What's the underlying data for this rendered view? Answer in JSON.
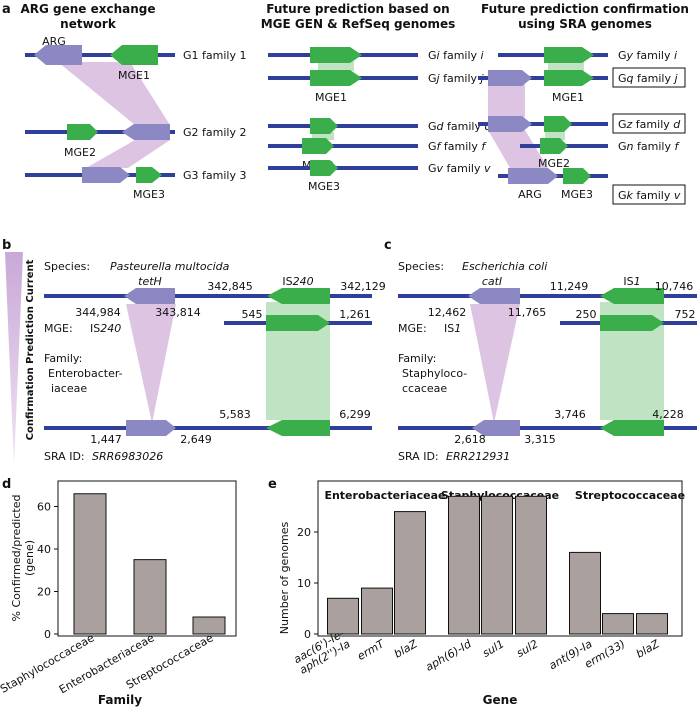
{
  "colors": {
    "backbone": "#2f3f9a",
    "arg": "#8c88c4",
    "mge": "#3aae4a",
    "arg_band": "#dcc4e2",
    "mge_band": "#bfe3c3",
    "bar": "#aaa09e"
  },
  "panel_letters": {
    "a": "a",
    "b": "b",
    "c": "c",
    "d": "d",
    "e": "e"
  },
  "panel_a": {
    "col1": {
      "title1": "ARG gene exchange",
      "title2": "network",
      "arg_label": "ARG",
      "mge1": "MGE1",
      "mge2": "MGE2",
      "mge3": "MGE3",
      "g1": "G1 family 1",
      "g2": "G2 family 2",
      "g3": "G3 family 3"
    },
    "col2": {
      "title1": "Future prediction based on",
      "title2": "MGE GEN & RefSeq genomes",
      "mge1": "MGE1",
      "mge2": "MGE2",
      "mge3": "MGE3",
      "rows": [
        {
          "pre": "G",
          "it": "i",
          "mid": " family ",
          "it2": "i"
        },
        {
          "pre": "G",
          "it": "j",
          "mid": " family ",
          "it2": "j"
        },
        {
          "pre": "G",
          "it": "d",
          "mid": " family ",
          "it2": "d"
        },
        {
          "pre": "G",
          "it": "f",
          "mid": " family ",
          "it2": "f"
        },
        {
          "pre": "G",
          "it": "v",
          "mid": " family ",
          "it2": "v"
        }
      ]
    },
    "col3": {
      "title1": "Future prediction confirmation",
      "title2": "using SRA genomes",
      "mge1": "MGE1",
      "mge2": "MGE2",
      "mge3": "MGE3",
      "arg": "ARG",
      "rows": [
        {
          "pre": "G",
          "it": "y",
          "mid": " family ",
          "it2": "i"
        },
        {
          "pre": "G",
          "it": "q",
          "mid": " family ",
          "it2": "j"
        },
        {
          "pre": "G",
          "it": "z",
          "mid": " family ",
          "it2": "d"
        },
        {
          "pre": "G",
          "it": "n",
          "mid": " family ",
          "it2": "f"
        },
        {
          "pre": "G",
          "it": "k",
          "mid": " family ",
          "it2": "v"
        }
      ]
    }
  },
  "side_label": "Confirmation Prediction Current",
  "panel_b": {
    "species_label": "Species:",
    "species": "Pasteurella multocida",
    "gene": "tetH",
    "is_pre": "IS",
    "is_num": "240",
    "c1": "344,984",
    "c2": "343,814",
    "c3": "342,845",
    "c4": "342,129",
    "m1": "545",
    "m2": "1,261",
    "mge_label": "MGE:",
    "mge_pre": "IS",
    "mge_num": "240",
    "family_label": "Family:",
    "family1": "Enterobacter-",
    "family2": "iaceae",
    "s1": "1,447",
    "s2": "2,649",
    "s3": "5,583",
    "s4": "6,299",
    "sra_label": "SRA ID:",
    "sra": "SRR6983026"
  },
  "panel_c": {
    "species_label": "Species:",
    "species": "Escherichia coli",
    "gene": "catI",
    "is_pre": "IS",
    "is_num": "1",
    "c1": "12,462",
    "c2": "11,765",
    "c3": "11,249",
    "c4": "10,746",
    "m1": "250",
    "m2": "752",
    "mge_label": "MGE:",
    "mge_pre": "IS",
    "mge_num": "1",
    "family_label": "Family:",
    "family1": "Staphyloco-",
    "family2": "ccaceae",
    "s1": "2,618",
    "s2": "3,315",
    "s3": "3,746",
    "s4": "4,228",
    "sra_label": "SRA ID:",
    "sra": "ERR212931"
  },
  "chart_data": [
    {
      "type": "bar",
      "categories": [
        "Staphylococcaceae",
        "Enterobacteriaceae",
        "Streptococcaceae"
      ],
      "values": [
        66,
        35,
        8
      ],
      "xlabel": "Family",
      "ylabel_lines": [
        "% Confirmed/predicted",
        "(gene)"
      ],
      "ylim": [
        0,
        72
      ],
      "yticks": [
        0,
        20,
        40,
        60
      ]
    },
    {
      "type": "bar",
      "groups": [
        {
          "name": "Enterobacteriaceae",
          "categories": [
            "aac(6')-Ie-aph(2'')-Ia",
            "ermT",
            "blaZ"
          ],
          "values": [
            7,
            9,
            24
          ]
        },
        {
          "name": "Staphylococcaceae",
          "categories": [
            "aph(6)-Id",
            "sul1",
            "sul2"
          ],
          "values": [
            27,
            27,
            27
          ]
        },
        {
          "name": "Streptococcaceae",
          "categories": [
            "ant(9)-Ia",
            "erm(33)",
            "blaZ"
          ],
          "values": [
            16,
            4,
            4
          ]
        }
      ],
      "tick_label_lines": [
        [
          "aac(6')-Ie-",
          "aph(2'')-Ia"
        ],
        [
          "ermT"
        ],
        [
          "blaZ"
        ],
        [
          "aph(6)-Id"
        ],
        [
          "sul1"
        ],
        [
          "sul2"
        ],
        [
          "ant(9)-Ia"
        ],
        [
          "erm(33)"
        ],
        [
          "blaZ"
        ]
      ],
      "xlabel": "Gene",
      "ylabel": "Number of genomes",
      "ylim": [
        0,
        30
      ],
      "yticks": [
        0,
        10,
        20
      ]
    }
  ]
}
